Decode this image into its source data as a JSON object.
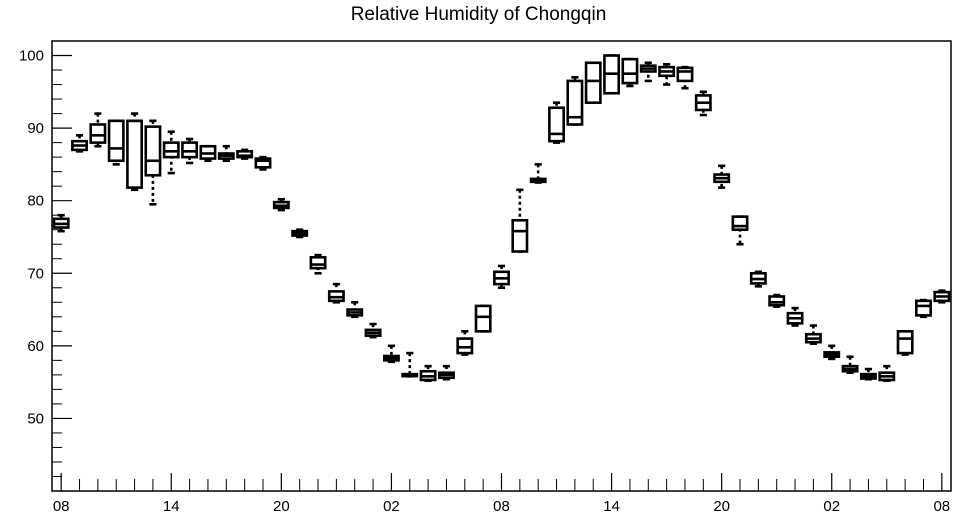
{
  "chart_data": {
    "type": "box",
    "title": "Relative Humidity of Chongqin",
    "xlabel": "",
    "ylabel": "",
    "ylim": [
      40,
      102
    ],
    "xlim": [
      -0.5,
      48.5
    ],
    "y_ticks": [
      50,
      60,
      70,
      80,
      90,
      100
    ],
    "x_ticks": [
      {
        "x": 0,
        "label": "08"
      },
      {
        "x": 6,
        "label": "14"
      },
      {
        "x": 12,
        "label": "20"
      },
      {
        "x": 18,
        "label": "02"
      },
      {
        "x": 24,
        "label": "08"
      },
      {
        "x": 30,
        "label": "14"
      },
      {
        "x": 36,
        "label": "20"
      },
      {
        "x": 42,
        "label": "02"
      },
      {
        "x": 48,
        "label": "08"
      }
    ],
    "boxes": [
      {
        "x": 0,
        "min": 75.8,
        "q1": 76.3,
        "median": 76.8,
        "q3": 77.5,
        "max": 78.0
      },
      {
        "x": 1,
        "min": 86.8,
        "q1": 87.0,
        "median": 87.6,
        "q3": 88.2,
        "max": 89.0
      },
      {
        "x": 2,
        "min": 87.5,
        "q1": 88.0,
        "median": 89.0,
        "q3": 90.5,
        "max": 92.0
      },
      {
        "x": 3,
        "min": 85.0,
        "q1": 85.5,
        "median": 87.2,
        "q3": 91.0,
        "max": 91.0
      },
      {
        "x": 4,
        "min": 81.5,
        "q1": 81.8,
        "median": 91.0,
        "q3": 91.0,
        "max": 92.0
      },
      {
        "x": 5,
        "min": 79.5,
        "q1": 83.5,
        "median": 85.5,
        "q3": 90.2,
        "max": 91.0
      },
      {
        "x": 6,
        "min": 83.8,
        "q1": 86.0,
        "median": 86.8,
        "q3": 88.0,
        "max": 89.5
      },
      {
        "x": 7,
        "min": 85.2,
        "q1": 86.0,
        "median": 86.8,
        "q3": 88.0,
        "max": 88.5
      },
      {
        "x": 8,
        "min": 85.5,
        "q1": 85.8,
        "median": 86.5,
        "q3": 87.5,
        "max": 87.5
      },
      {
        "x": 9,
        "min": 85.5,
        "q1": 85.8,
        "median": 86.2,
        "q3": 86.5,
        "max": 87.5
      },
      {
        "x": 10,
        "min": 85.8,
        "q1": 86.0,
        "median": 86.2,
        "q3": 86.8,
        "max": 87.0
      },
      {
        "x": 11,
        "min": 84.3,
        "q1": 84.6,
        "median": 85.5,
        "q3": 85.8,
        "max": 86.0
      },
      {
        "x": 12,
        "min": 78.7,
        "q1": 79.0,
        "median": 79.3,
        "q3": 79.8,
        "max": 80.2
      },
      {
        "x": 13,
        "min": 75.0,
        "q1": 75.2,
        "median": 75.5,
        "q3": 75.8,
        "max": 76.0
      },
      {
        "x": 14,
        "min": 70.0,
        "q1": 70.7,
        "median": 71.2,
        "q3": 72.2,
        "max": 72.5
      },
      {
        "x": 15,
        "min": 66.0,
        "q1": 66.2,
        "median": 66.7,
        "q3": 67.5,
        "max": 68.5
      },
      {
        "x": 16,
        "min": 64.0,
        "q1": 64.2,
        "median": 64.6,
        "q3": 65.0,
        "max": 66.0
      },
      {
        "x": 17,
        "min": 61.2,
        "q1": 61.4,
        "median": 61.8,
        "q3": 62.2,
        "max": 63.0
      },
      {
        "x": 18,
        "min": 57.8,
        "q1": 58.0,
        "median": 58.3,
        "q3": 58.6,
        "max": 60.0
      },
      {
        "x": 19,
        "min": 55.8,
        "q1": 55.9,
        "median": 56.0,
        "q3": 56.1,
        "max": 59.0
      },
      {
        "x": 20,
        "min": 55.2,
        "q1": 55.3,
        "median": 55.8,
        "q3": 56.5,
        "max": 57.2
      },
      {
        "x": 21,
        "min": 55.4,
        "q1": 55.6,
        "median": 56.0,
        "q3": 56.3,
        "max": 57.2
      },
      {
        "x": 22,
        "min": 58.8,
        "q1": 59.0,
        "median": 59.8,
        "q3": 61.0,
        "max": 62.0
      },
      {
        "x": 23,
        "min": 62.0,
        "q1": 62.0,
        "median": 64.0,
        "q3": 65.5,
        "max": 65.5
      },
      {
        "x": 24,
        "min": 68.0,
        "q1": 68.5,
        "median": 69.3,
        "q3": 70.2,
        "max": 71.0
      },
      {
        "x": 25,
        "min": 73.0,
        "q1": 73.0,
        "median": 75.8,
        "q3": 77.3,
        "max": 81.5
      },
      {
        "x": 26,
        "min": 82.5,
        "q1": 82.6,
        "median": 82.8,
        "q3": 83.0,
        "max": 85.0
      },
      {
        "x": 27,
        "min": 88.0,
        "q1": 88.2,
        "median": 89.2,
        "q3": 92.8,
        "max": 93.5
      },
      {
        "x": 28,
        "min": 90.5,
        "q1": 90.5,
        "median": 91.5,
        "q3": 96.5,
        "max": 97.0
      },
      {
        "x": 29,
        "min": 93.5,
        "q1": 93.5,
        "median": 96.5,
        "q3": 99.0,
        "max": 99.0
      },
      {
        "x": 30,
        "min": 94.8,
        "q1": 94.8,
        "median": 97.5,
        "q3": 100.0,
        "max": 100.0
      },
      {
        "x": 31,
        "min": 95.8,
        "q1": 96.2,
        "median": 97.5,
        "q3": 99.5,
        "max": 99.5
      },
      {
        "x": 32,
        "min": 96.5,
        "q1": 97.8,
        "median": 98.2,
        "q3": 98.6,
        "max": 99.0
      },
      {
        "x": 33,
        "min": 96.0,
        "q1": 97.2,
        "median": 97.8,
        "q3": 98.4,
        "max": 98.8
      },
      {
        "x": 34,
        "min": 95.5,
        "q1": 96.5,
        "median": 97.8,
        "q3": 98.3,
        "max": 98.4
      },
      {
        "x": 35,
        "min": 91.8,
        "q1": 92.5,
        "median": 93.5,
        "q3": 94.5,
        "max": 95.0
      },
      {
        "x": 36,
        "min": 81.8,
        "q1": 82.6,
        "median": 83.1,
        "q3": 83.6,
        "max": 84.8
      },
      {
        "x": 37,
        "min": 74.0,
        "q1": 76.0,
        "median": 76.5,
        "q3": 77.8,
        "max": 77.8
      },
      {
        "x": 38,
        "min": 68.2,
        "q1": 68.6,
        "median": 69.2,
        "q3": 70.0,
        "max": 70.2
      },
      {
        "x": 39,
        "min": 65.4,
        "q1": 65.6,
        "median": 66.0,
        "q3": 66.8,
        "max": 67.0
      },
      {
        "x": 40,
        "min": 62.8,
        "q1": 63.1,
        "median": 63.8,
        "q3": 64.5,
        "max": 65.2
      },
      {
        "x": 41,
        "min": 60.3,
        "q1": 60.5,
        "median": 61.0,
        "q3": 61.6,
        "max": 62.8
      },
      {
        "x": 42,
        "min": 58.2,
        "q1": 58.5,
        "median": 58.8,
        "q3": 59.1,
        "max": 60.0
      },
      {
        "x": 43,
        "min": 56.3,
        "q1": 56.5,
        "median": 56.8,
        "q3": 57.2,
        "max": 58.5
      },
      {
        "x": 44,
        "min": 55.4,
        "q1": 55.5,
        "median": 55.8,
        "q3": 56.1,
        "max": 56.8
      },
      {
        "x": 45,
        "min": 55.2,
        "q1": 55.3,
        "median": 55.8,
        "q3": 56.3,
        "max": 57.2
      },
      {
        "x": 46,
        "min": 58.8,
        "q1": 59.0,
        "median": 61.0,
        "q3": 62.0,
        "max": 62.0
      },
      {
        "x": 47,
        "min": 64.0,
        "q1": 64.2,
        "median": 65.5,
        "q3": 66.2,
        "max": 66.3
      },
      {
        "x": 48,
        "min": 66.0,
        "q1": 66.2,
        "median": 66.8,
        "q3": 67.4,
        "max": 67.6
      }
    ]
  }
}
